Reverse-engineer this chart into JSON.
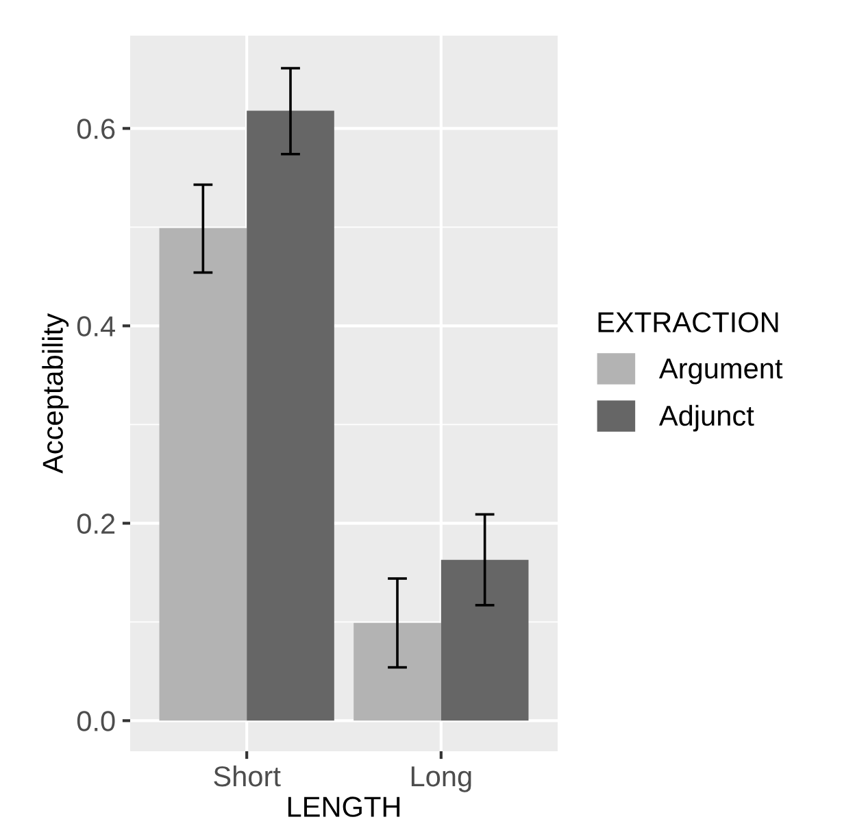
{
  "chart_data": {
    "type": "bar",
    "xlabel": "LENGTH",
    "ylabel": "Acceptability",
    "legend_title": "EXTRACTION",
    "categories": [
      "Short",
      "Long"
    ],
    "series": [
      {
        "name": "Argument",
        "color": "#b3b3b3",
        "values": [
          0.499,
          0.099
        ],
        "errors": [
          [
            0.454,
            0.543
          ],
          [
            0.054,
            0.144
          ]
        ]
      },
      {
        "name": "Adjunct",
        "color": "#666666",
        "values": [
          0.618,
          0.163
        ],
        "errors": [
          [
            0.574,
            0.661
          ],
          [
            0.117,
            0.209
          ]
        ]
      }
    ],
    "ylim": [
      -0.031,
      0.694
    ],
    "yticks": [
      {
        "value": 0,
        "label": "0.0"
      },
      {
        "value": 0.2,
        "label": "0.2"
      },
      {
        "value": 0.4,
        "label": "0.4"
      },
      {
        "value": 0.6,
        "label": "0.6"
      }
    ],
    "grid": true,
    "legend": "right"
  }
}
